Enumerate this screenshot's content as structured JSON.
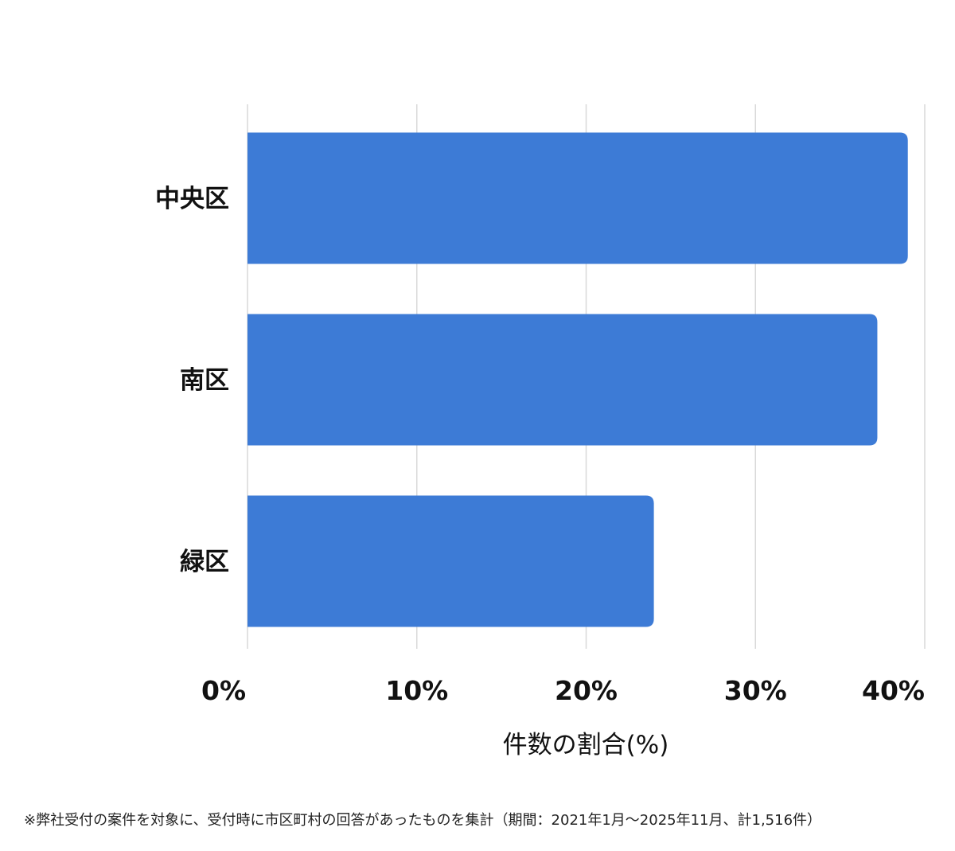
{
  "chart_data": {
    "type": "bar",
    "orientation": "horizontal",
    "categories": [
      "中央区",
      "南区",
      "緑区"
    ],
    "values": [
      39.0,
      37.2,
      24.0
    ],
    "xlim": [
      0,
      40
    ],
    "xticks": [
      0,
      10,
      20,
      30,
      40
    ],
    "xtick_labels": [
      "0%",
      "10%",
      "20%",
      "30%",
      "40%"
    ],
    "xlabel": "件数の割合(%)",
    "grid": true,
    "bar_color": "#3d7bd6"
  },
  "footnote": "※弊社受付の案件を対象に、受付時に市区町村の回答があったものを集計（期間：2021年1月～2025年11月、計1,516件）"
}
